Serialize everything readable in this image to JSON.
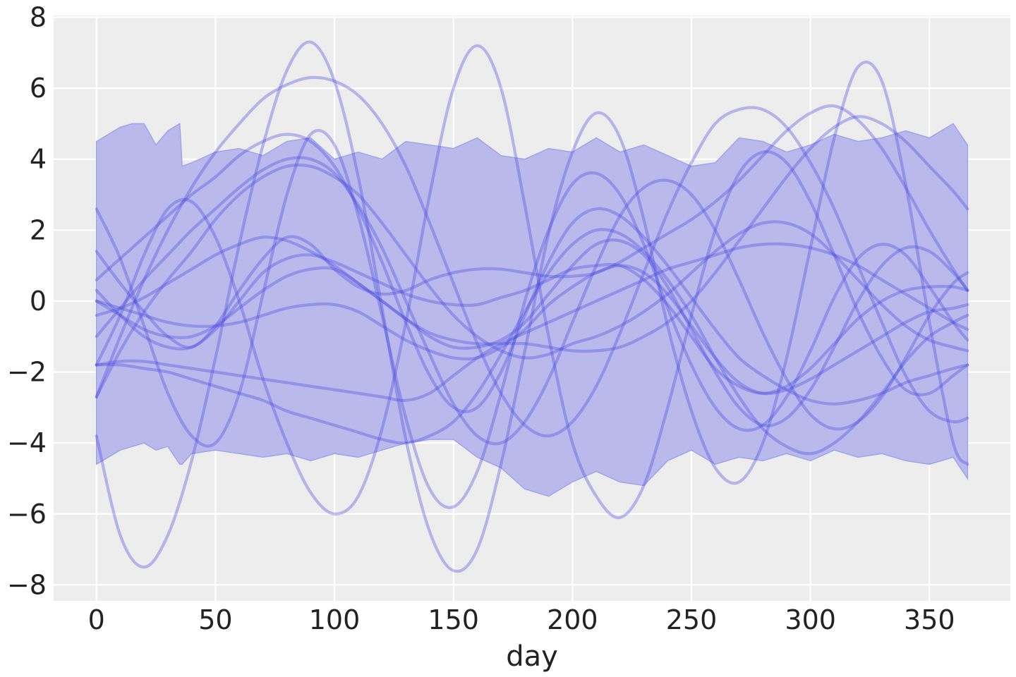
{
  "chart_data": {
    "type": "line",
    "title": "",
    "xlabel": "day",
    "ylabel": "",
    "xlim": [
      -18,
      384
    ],
    "ylim": [
      -8.45,
      8.05
    ],
    "xticks": [
      0,
      50,
      100,
      150,
      200,
      250,
      300,
      350
    ],
    "yticks": [
      -8,
      -6,
      -4,
      -2,
      0,
      2,
      4,
      6,
      8
    ],
    "ytick_labels": [
      "−8",
      "−6",
      "−4",
      "−2",
      "0",
      "2",
      "4",
      "6",
      "8"
    ],
    "grid": true,
    "legend": "none",
    "colors": {
      "background": "#ededed",
      "grid": "#ffffff",
      "band": "#b9b9ec",
      "band_edge": "#a3a3ea",
      "line": "rgba(70,70,225,0.34)"
    },
    "band": {
      "x": [
        0,
        5,
        10,
        15,
        20,
        25,
        30,
        35,
        36,
        40,
        50,
        60,
        70,
        80,
        90,
        100,
        110,
        120,
        130,
        140,
        150,
        160,
        170,
        180,
        190,
        200,
        210,
        220,
        230,
        240,
        250,
        260,
        270,
        280,
        290,
        300,
        310,
        320,
        330,
        340,
        350,
        360,
        366
      ],
      "upper": [
        4.5,
        4.7,
        4.9,
        5.0,
        5.0,
        4.4,
        4.8,
        5.0,
        3.8,
        3.9,
        4.2,
        4.3,
        4.1,
        4.5,
        4.6,
        4.0,
        4.2,
        4.0,
        4.5,
        4.4,
        4.3,
        4.6,
        4.1,
        4.0,
        4.3,
        4.2,
        4.6,
        4.2,
        4.4,
        4.1,
        3.8,
        3.9,
        4.6,
        4.5,
        4.2,
        4.4,
        4.7,
        4.5,
        4.6,
        4.8,
        4.6,
        5.0,
        4.4
      ],
      "lower": [
        -4.6,
        -4.4,
        -4.2,
        -4.1,
        -4.0,
        -4.2,
        -4.1,
        -4.6,
        -4.6,
        -4.3,
        -4.2,
        -4.3,
        -4.4,
        -4.3,
        -4.5,
        -4.3,
        -4.4,
        -4.2,
        -4.0,
        -3.9,
        -3.9,
        -4.4,
        -4.7,
        -5.3,
        -5.5,
        -5.1,
        -4.8,
        -5.1,
        -5.2,
        -4.5,
        -4.2,
        -4.6,
        -4.4,
        -4.5,
        -4.3,
        -4.5,
        -4.2,
        -4.4,
        -4.3,
        -4.5,
        -4.6,
        -4.4,
        -5.0
      ]
    },
    "x": [
      0,
      10,
      20,
      30,
      40,
      50,
      60,
      70,
      80,
      90,
      100,
      110,
      120,
      130,
      140,
      150,
      160,
      170,
      180,
      190,
      200,
      210,
      220,
      230,
      240,
      250,
      260,
      270,
      280,
      290,
      300,
      310,
      320,
      330,
      340,
      350,
      360,
      366
    ],
    "series": [
      {
        "values": [
          -3.8,
          -6.6,
          -7.5,
          -6.6,
          -4.5,
          -1.6,
          1.6,
          4.4,
          6.5,
          7.3,
          6.2,
          3.5,
          -0.2,
          -3.9,
          -6.5,
          -7.6,
          -7.0,
          -4.6,
          -1.4,
          1.9,
          4.2,
          5.3,
          4.6,
          2.3,
          -0.7,
          -3.1,
          -4.7,
          -5.1,
          -4.0,
          -1.6,
          1.5,
          4.6,
          6.6,
          6.2,
          3.3,
          -0.6,
          -4.0,
          -4.6
        ]
      },
      {
        "values": [
          1.4,
          0.5,
          -0.3,
          -1.0,
          -1.3,
          -0.7,
          0.3,
          1.2,
          1.8,
          1.6,
          0.9,
          0.4,
          0.2,
          0.3,
          0.6,
          0.8,
          0.9,
          0.9,
          0.8,
          0.7,
          0.7,
          0.8,
          1.1,
          1.5,
          1.9,
          2.3,
          2.8,
          3.4,
          4.1,
          4.8,
          5.3,
          5.5,
          5.1,
          4.3,
          3.2,
          2.0,
          0.9,
          0.3
        ]
      },
      {
        "values": [
          -1.8,
          -1.7,
          -1.7,
          -1.8,
          -1.9,
          -2.0,
          -2.1,
          -2.2,
          -2.3,
          -2.4,
          -2.5,
          -2.6,
          -2.7,
          -2.8,
          -2.6,
          -2.1,
          -1.6,
          -1.2,
          -0.9,
          -0.6,
          -0.3,
          0.0,
          0.3,
          0.6,
          0.9,
          1.1,
          1.3,
          1.5,
          1.6,
          1.6,
          1.5,
          1.3,
          1.0,
          0.6,
          0.2,
          -0.2,
          -0.6,
          -0.8
        ]
      },
      {
        "values": [
          -2.7,
          -1.4,
          -0.3,
          0.6,
          1.4,
          2.3,
          3.0,
          3.5,
          3.8,
          3.8,
          3.5,
          3.0,
          2.2,
          1.3,
          0.4,
          -0.4,
          -1.0,
          -1.4,
          -1.6,
          -1.5,
          -1.2,
          -1.0,
          -0.7,
          -0.3,
          0.2,
          0.8,
          1.4,
          1.9,
          2.2,
          2.2,
          1.9,
          1.3,
          0.6,
          -0.1,
          -0.7,
          -1.1,
          -1.3,
          -1.4
        ]
      },
      {
        "values": [
          2.6,
          1.2,
          -0.7,
          -2.6,
          -3.8,
          -4.0,
          -2.6,
          0.2,
          3.0,
          4.7,
          4.4,
          2.4,
          -0.4,
          -3.3,
          -5.3,
          -5.8,
          -4.8,
          -2.6,
          0.0,
          2.0,
          3.3,
          3.6,
          3.0,
          1.6,
          -0.2,
          -1.8,
          -3.0,
          -3.6,
          -3.5,
          -2.7,
          -1.4,
          0.1,
          1.2,
          1.6,
          1.3,
          0.4,
          -0.6,
          -1.1
        ]
      },
      {
        "values": [
          0.3,
          -0.4,
          -1.0,
          -1.3,
          -1.3,
          -0.8,
          0.0,
          0.8,
          1.2,
          1.3,
          1.1,
          0.8,
          0.5,
          0.2,
          0.0,
          -0.1,
          -0.1,
          0.1,
          0.3,
          0.6,
          0.9,
          1.0,
          1.0,
          0.6,
          -0.1,
          -1.0,
          -1.9,
          -2.4,
          -2.6,
          -2.4,
          -1.9,
          -1.2,
          -0.5,
          0.0,
          0.3,
          0.4,
          0.4,
          0.3
        ]
      },
      {
        "values": [
          0.6,
          1.2,
          1.8,
          2.4,
          3.0,
          3.5,
          4.1,
          4.5,
          4.7,
          4.5,
          3.8,
          2.6,
          1.1,
          -0.6,
          -2.1,
          -3.0,
          -3.0,
          -2.0,
          -0.4,
          1.1,
          2.2,
          2.6,
          2.4,
          1.8,
          1.0,
          0.1,
          -0.8,
          -1.6,
          -2.1,
          -2.5,
          -2.8,
          -2.9,
          -2.8,
          -2.6,
          -2.3,
          -2.1,
          -1.9,
          -1.8
        ]
      },
      {
        "values": [
          0.0,
          -0.4,
          -0.8,
          -1.0,
          -1.0,
          -0.7,
          -0.2,
          0.3,
          0.7,
          0.9,
          0.9,
          0.5,
          0.0,
          -0.5,
          -1.0,
          -1.3,
          -1.3,
          -1.1,
          -0.6,
          0.2,
          1.0,
          1.6,
          1.7,
          1.3,
          0.4,
          -0.8,
          -2.0,
          -3.0,
          -3.5,
          -3.3,
          -2.5,
          -1.3,
          0.0,
          1.0,
          1.5,
          1.4,
          0.8,
          0.3
        ]
      },
      {
        "values": [
          -0.4,
          -0.2,
          0.1,
          0.5,
          0.9,
          1.3,
          1.6,
          1.8,
          1.7,
          1.4,
          1.0,
          0.5,
          0.0,
          -0.5,
          -0.9,
          -1.1,
          -1.2,
          -1.2,
          -1.2,
          -1.3,
          -1.4,
          -1.4,
          -1.3,
          -1.0,
          -0.6,
          0.0,
          0.8,
          1.7,
          2.6,
          3.5,
          4.3,
          4.9,
          5.2,
          5.0,
          4.5,
          3.8,
          3.1,
          2.6
        ]
      },
      {
        "values": [
          -1.8,
          -0.4,
          1.3,
          2.6,
          2.8,
          1.8,
          0.0,
          -2.2,
          -4.0,
          -5.4,
          -6.0,
          -5.5,
          -3.6,
          -0.6,
          3.0,
          6.0,
          7.2,
          6.0,
          2.7,
          -1.0,
          -4.0,
          -5.5,
          -6.1,
          -5.2,
          -3.0,
          -0.4,
          2.0,
          3.6,
          4.2,
          3.9,
          2.8,
          1.3,
          -0.3,
          -1.6,
          -2.5,
          -2.6,
          -2.1,
          -1.8
        ]
      },
      {
        "values": [
          -2.7,
          -1.0,
          0.6,
          2.0,
          3.2,
          4.2,
          5.0,
          5.7,
          6.1,
          6.3,
          6.2,
          5.8,
          5.0,
          3.8,
          2.2,
          0.5,
          -1.2,
          -2.6,
          -3.5,
          -3.8,
          -3.4,
          -2.4,
          -0.9,
          0.8,
          2.5,
          3.9,
          5.0,
          5.4,
          5.4,
          4.9,
          3.9,
          2.6,
          1.0,
          -0.6,
          -2.1,
          -3.1,
          -3.4,
          -3.3
        ]
      },
      {
        "values": [
          0.0,
          -0.2,
          -0.4,
          -0.6,
          -0.7,
          -0.7,
          -0.6,
          -0.4,
          -0.2,
          -0.1,
          -0.1,
          -0.3,
          -0.7,
          -1.1,
          -1.4,
          -1.6,
          -1.6,
          -1.3,
          -0.8,
          -0.1,
          0.4,
          0.8,
          1.0,
          0.8,
          0.2,
          -0.7,
          -1.6,
          -2.3,
          -2.6,
          -2.5,
          -2.2,
          -1.8,
          -1.4,
          -1.0,
          -0.6,
          -0.3,
          -0.2,
          -0.1
        ]
      },
      {
        "values": [
          -1.8,
          -1.8,
          -1.9,
          -2.0,
          -2.2,
          -2.4,
          -2.6,
          -2.8,
          -3.1,
          -3.3,
          -3.5,
          -3.7,
          -3.9,
          -4.0,
          -3.8,
          -3.4,
          -2.6,
          -1.5,
          -0.3,
          0.8,
          1.6,
          2.0,
          1.9,
          1.4,
          0.6,
          -0.4,
          -1.6,
          -2.7,
          -3.6,
          -4.1,
          -4.3,
          -4.0,
          -3.4,
          -2.6,
          -1.7,
          -1.0,
          -0.6,
          -0.4
        ]
      },
      {
        "values": [
          -1.0,
          -0.2,
          0.6,
          1.3,
          2.0,
          2.6,
          3.2,
          3.7,
          4.0,
          4.0,
          3.6,
          2.7,
          1.5,
          0.0,
          -1.5,
          -2.9,
          -3.8,
          -4.0,
          -3.4,
          -2.2,
          -0.6,
          1.0,
          2.4,
          3.2,
          3.4,
          3.0,
          2.0,
          0.6,
          -0.9,
          -2.2,
          -3.2,
          -3.6,
          -3.4,
          -2.7,
          -1.6,
          -0.4,
          0.5,
          0.8
        ]
      }
    ]
  }
}
